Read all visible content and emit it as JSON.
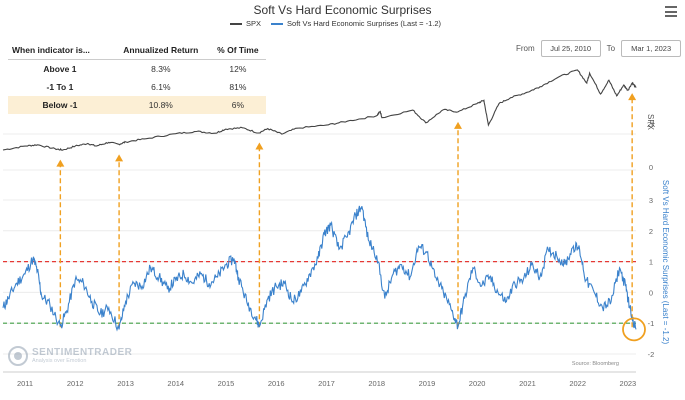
{
  "title": "Soft Vs Hard Economic Surprises",
  "legend": [
    {
      "name": "SPX",
      "color": "#444444"
    },
    {
      "name": "Soft Vs Hard Economic Surprises (Last = -1.2)",
      "color": "#3b82cc"
    }
  ],
  "stats_table": {
    "headers": [
      "When indicator is...",
      "Annualized Return",
      "% Of Time"
    ],
    "rows": [
      {
        "label": "Above 1",
        "ret": "8.3%",
        "time": "12%"
      },
      {
        "label": "-1 To 1",
        "ret": "6.1%",
        "time": "81%"
      },
      {
        "label": "Below -1",
        "ret": "10.8%",
        "time": "6%",
        "highlight": true
      }
    ]
  },
  "range": {
    "from_label": "From",
    "from": "Jul 25, 2010",
    "to_label": "To",
    "to": "Mar 1, 2023"
  },
  "brand": {
    "name": "SENTIMENTRADER",
    "tagline": "Analysis over Emotion"
  },
  "source": "Source: Bloomberg",
  "menu_icon": "hamburger-menu-icon",
  "chart_data": {
    "type": "line",
    "title": "Soft Vs Hard Economic Surprises",
    "x_axis": {
      "type": "date",
      "range": [
        "2010-07-25",
        "2023-03-01"
      ],
      "tick_labels": [
        "2011",
        "2012",
        "2013",
        "2014",
        "2015",
        "2016",
        "2017",
        "2018",
        "2019",
        "2020",
        "2021",
        "2022",
        "2023"
      ]
    },
    "spx_axis": {
      "label": "SPX",
      "tick_labels": [
        "2k",
        "0"
      ]
    },
    "indicator_axis": {
      "label": "Soft Vs Hard Economic Surprises (Last = -1.2)",
      "range": [
        -2,
        3
      ],
      "tick_labels": [
        "3",
        "2",
        "1",
        "0",
        "-1",
        "-2"
      ]
    },
    "thresholds": [
      {
        "value": 1,
        "color": "#e53935",
        "style": "dashed"
      },
      {
        "value": -1,
        "color": "#43a047",
        "style": "dashed"
      }
    ],
    "signal_dates": [
      "2011-09-15",
      "2012-11-15",
      "2015-09-01",
      "2019-08-15",
      "2023-02-01"
    ],
    "series": [
      {
        "name": "SPX",
        "axis": "spx",
        "color": "#444444",
        "points": [
          [
            "2010-07-25",
            1100
          ],
          [
            "2011-01-01",
            1280
          ],
          [
            "2011-04-01",
            1340
          ],
          [
            "2011-08-10",
            1150
          ],
          [
            "2011-10-03",
            1100
          ],
          [
            "2012-01-01",
            1280
          ],
          [
            "2012-04-01",
            1400
          ],
          [
            "2012-06-01",
            1280
          ],
          [
            "2012-09-01",
            1450
          ],
          [
            "2012-11-15",
            1360
          ],
          [
            "2013-01-01",
            1470
          ],
          [
            "2013-06-01",
            1620
          ],
          [
            "2013-12-31",
            1850
          ],
          [
            "2014-06-01",
            1950
          ],
          [
            "2014-10-15",
            1870
          ],
          [
            "2014-12-31",
            2060
          ],
          [
            "2015-05-01",
            2120
          ],
          [
            "2015-08-25",
            1880
          ],
          [
            "2015-11-01",
            2080
          ],
          [
            "2016-02-11",
            1830
          ],
          [
            "2016-06-01",
            2100
          ],
          [
            "2016-12-31",
            2240
          ],
          [
            "2017-06-01",
            2420
          ],
          [
            "2017-12-31",
            2670
          ],
          [
            "2018-01-26",
            2870
          ],
          [
            "2018-02-08",
            2580
          ],
          [
            "2018-09-20",
            2930
          ],
          [
            "2018-12-24",
            2350
          ],
          [
            "2019-04-30",
            2950
          ],
          [
            "2019-08-15",
            2850
          ],
          [
            "2019-12-31",
            3230
          ],
          [
            "2020-02-19",
            3380
          ],
          [
            "2020-03-23",
            2240
          ],
          [
            "2020-06-08",
            3230
          ],
          [
            "2020-09-01",
            3500
          ],
          [
            "2020-12-31",
            3750
          ],
          [
            "2021-04-01",
            4000
          ],
          [
            "2021-08-15",
            4450
          ],
          [
            "2021-12-31",
            4770
          ],
          [
            "2022-03-08",
            4170
          ],
          [
            "2022-03-29",
            4630
          ],
          [
            "2022-06-16",
            3670
          ],
          [
            "2022-08-16",
            4300
          ],
          [
            "2022-10-12",
            3580
          ],
          [
            "2022-12-01",
            4080
          ],
          [
            "2023-01-01",
            3840
          ],
          [
            "2023-02-02",
            4180
          ],
          [
            "2023-03-01",
            3960
          ]
        ]
      },
      {
        "name": "Soft Vs Hard Economic Surprises",
        "axis": "indicator",
        "color": "#3b82cc",
        "points": [
          [
            "2010-07-25",
            -0.5
          ],
          [
            "2010-09-01",
            -0.2
          ],
          [
            "2010-11-01",
            0.3
          ],
          [
            "2011-01-01",
            0.6
          ],
          [
            "2011-03-01",
            1.1
          ],
          [
            "2011-04-01",
            0.7
          ],
          [
            "2011-05-01",
            -0.1
          ],
          [
            "2011-07-01",
            -0.4
          ],
          [
            "2011-09-15",
            -1.1
          ],
          [
            "2011-11-01",
            -0.6
          ],
          [
            "2012-01-01",
            0.4
          ],
          [
            "2012-03-01",
            0.3
          ],
          [
            "2012-05-01",
            -0.3
          ],
          [
            "2012-07-01",
            -0.7
          ],
          [
            "2012-09-01",
            -0.5
          ],
          [
            "2012-11-15",
            -1.2
          ],
          [
            "2013-01-01",
            -0.3
          ],
          [
            "2013-03-01",
            0.3
          ],
          [
            "2013-05-01",
            0.2
          ],
          [
            "2013-07-01",
            0.8
          ],
          [
            "2013-09-01",
            0.5
          ],
          [
            "2013-11-01",
            0.1
          ],
          [
            "2014-01-01",
            0.4
          ],
          [
            "2014-03-01",
            0.6
          ],
          [
            "2014-05-01",
            0.3
          ],
          [
            "2014-07-01",
            0.6
          ],
          [
            "2014-09-01",
            0.3
          ],
          [
            "2014-11-01",
            0.5
          ],
          [
            "2015-01-01",
            0.9
          ],
          [
            "2015-03-01",
            1.1
          ],
          [
            "2015-04-01",
            0.5
          ],
          [
            "2015-06-01",
            -0.3
          ],
          [
            "2015-08-01",
            -0.8
          ],
          [
            "2015-09-01",
            -1.1
          ],
          [
            "2015-11-01",
            -0.2
          ],
          [
            "2016-01-01",
            0.2
          ],
          [
            "2016-03-01",
            0.3
          ],
          [
            "2016-05-01",
            -0.3
          ],
          [
            "2016-07-01",
            0.0
          ],
          [
            "2016-09-01",
            0.6
          ],
          [
            "2016-11-01",
            1.1
          ],
          [
            "2016-12-15",
            1.9
          ],
          [
            "2017-02-01",
            2.2
          ],
          [
            "2017-04-01",
            1.4
          ],
          [
            "2017-06-01",
            1.8
          ],
          [
            "2017-08-01",
            2.5
          ],
          [
            "2017-09-15",
            2.8
          ],
          [
            "2017-11-01",
            1.7
          ],
          [
            "2018-01-01",
            1.2
          ],
          [
            "2018-03-01",
            -0.2
          ],
          [
            "2018-05-01",
            0.6
          ],
          [
            "2018-07-01",
            0.9
          ],
          [
            "2018-09-01",
            0.5
          ],
          [
            "2018-11-01",
            1.5
          ],
          [
            "2019-01-01",
            1.3
          ],
          [
            "2019-03-01",
            0.5
          ],
          [
            "2019-05-01",
            0.0
          ],
          [
            "2019-07-01",
            -0.6
          ],
          [
            "2019-08-15",
            -1.1
          ],
          [
            "2019-10-01",
            -0.2
          ],
          [
            "2019-12-01",
            0.8
          ],
          [
            "2020-02-01",
            0.2
          ],
          [
            "2020-04-01",
            0.5
          ],
          [
            "2020-06-01",
            0.0
          ],
          [
            "2020-08-01",
            -0.3
          ],
          [
            "2020-10-01",
            0.3
          ],
          [
            "2020-12-01",
            0.4
          ],
          [
            "2021-02-01",
            0.9
          ],
          [
            "2021-04-01",
            0.5
          ],
          [
            "2021-06-01",
            1.4
          ],
          [
            "2021-08-01",
            1.2
          ],
          [
            "2021-10-01",
            0.9
          ],
          [
            "2021-12-01",
            1.5
          ],
          [
            "2022-01-15",
            1.4
          ],
          [
            "2022-03-01",
            0.4
          ],
          [
            "2022-05-01",
            0.0
          ],
          [
            "2022-07-01",
            -0.5
          ],
          [
            "2022-09-01",
            -0.3
          ],
          [
            "2022-11-01",
            0.8
          ],
          [
            "2022-12-15",
            0.2
          ],
          [
            "2023-01-15",
            -0.5
          ],
          [
            "2023-03-01",
            -1.2
          ]
        ]
      }
    ]
  }
}
